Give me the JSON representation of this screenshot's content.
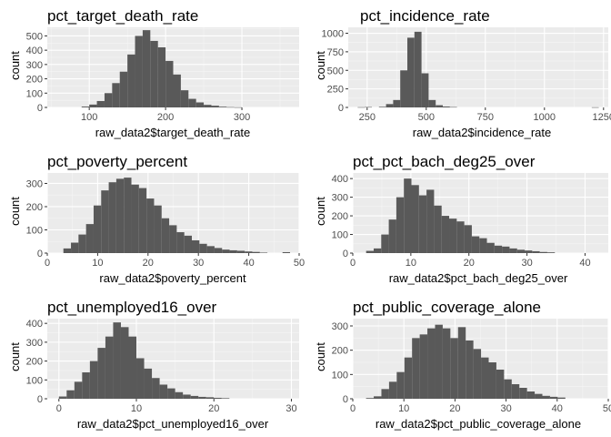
{
  "colors": {
    "panel_bg": "#ebebeb",
    "grid_major": "#ffffff",
    "grid_minor": "#f5f5f5",
    "bar_fill": "#595959",
    "tick_text": "#4d4d4d",
    "tick_mark": "#333333"
  },
  "chart_data": [
    {
      "type": "bar",
      "title": "pct_target_death_rate",
      "xlabel": "raw_data2$target_death_rate",
      "ylabel": "count",
      "xlim": [
        45,
        375
      ],
      "ylim": [
        0,
        560
      ],
      "xticks": [
        100,
        200,
        300
      ],
      "yticks": [
        0,
        100,
        200,
        300,
        400,
        500
      ],
      "grid": true,
      "bins": [
        {
          "x0": 90,
          "x1": 100,
          "count": 6
        },
        {
          "x0": 100,
          "x1": 110,
          "count": 20
        },
        {
          "x0": 110,
          "x1": 120,
          "count": 45
        },
        {
          "x0": 120,
          "x1": 130,
          "count": 100
        },
        {
          "x0": 130,
          "x1": 140,
          "count": 170
        },
        {
          "x0": 140,
          "x1": 150,
          "count": 250
        },
        {
          "x0": 150,
          "x1": 160,
          "count": 370
        },
        {
          "x0": 160,
          "x1": 170,
          "count": 500
        },
        {
          "x0": 170,
          "x1": 180,
          "count": 540
        },
        {
          "x0": 180,
          "x1": 190,
          "count": 465
        },
        {
          "x0": 190,
          "x1": 200,
          "count": 420
        },
        {
          "x0": 200,
          "x1": 210,
          "count": 325
        },
        {
          "x0": 210,
          "x1": 220,
          "count": 230
        },
        {
          "x0": 220,
          "x1": 230,
          "count": 120
        },
        {
          "x0": 230,
          "x1": 240,
          "count": 60
        },
        {
          "x0": 240,
          "x1": 250,
          "count": 35
        },
        {
          "x0": 250,
          "x1": 260,
          "count": 18
        },
        {
          "x0": 260,
          "x1": 270,
          "count": 12
        },
        {
          "x0": 270,
          "x1": 280,
          "count": 5
        },
        {
          "x0": 280,
          "x1": 290,
          "count": 2
        },
        {
          "x0": 290,
          "x1": 300,
          "count": 1
        }
      ]
    },
    {
      "type": "bar",
      "title": "pct_incidence_rate",
      "xlabel": "raw_data2$incidence_rate",
      "ylabel": "count",
      "xlim": [
        170,
        1270
      ],
      "ylim": [
        0,
        1080
      ],
      "xticks": [
        250,
        500,
        750,
        1000,
        1250
      ],
      "yticks": [
        0,
        250,
        500,
        750,
        1000
      ],
      "grid": true,
      "bins": [
        {
          "x0": 210,
          "x1": 240,
          "count": 3
        },
        {
          "x0": 240,
          "x1": 270,
          "count": 5
        },
        {
          "x0": 300,
          "x1": 330,
          "count": 8
        },
        {
          "x0": 330,
          "x1": 360,
          "count": 45
        },
        {
          "x0": 360,
          "x1": 390,
          "count": 100
        },
        {
          "x0": 390,
          "x1": 420,
          "count": 500
        },
        {
          "x0": 420,
          "x1": 450,
          "count": 940
        },
        {
          "x0": 450,
          "x1": 480,
          "count": 1020
        },
        {
          "x0": 480,
          "x1": 510,
          "count": 460
        },
        {
          "x0": 510,
          "x1": 540,
          "count": 100
        },
        {
          "x0": 540,
          "x1": 570,
          "count": 30
        },
        {
          "x0": 570,
          "x1": 600,
          "count": 12
        },
        {
          "x0": 600,
          "x1": 630,
          "count": 5
        },
        {
          "x0": 1200,
          "x1": 1230,
          "count": 2
        }
      ]
    },
    {
      "type": "bar",
      "title": "pct_poverty_percent",
      "xlabel": "raw_data2$poverty_percent",
      "ylabel": "count",
      "xlim": [
        0,
        50
      ],
      "ylim": [
        0,
        345
      ],
      "xticks": [
        0,
        10,
        20,
        30,
        40,
        50
      ],
      "yticks": [
        0,
        100,
        200,
        300
      ],
      "grid": true,
      "bins": [
        {
          "x0": 3.2,
          "x1": 4.7,
          "count": 20
        },
        {
          "x0": 4.7,
          "x1": 6.2,
          "count": 45
        },
        {
          "x0": 6.2,
          "x1": 7.7,
          "count": 80
        },
        {
          "x0": 7.7,
          "x1": 9.2,
          "count": 125
        },
        {
          "x0": 9.2,
          "x1": 10.7,
          "count": 205
        },
        {
          "x0": 10.7,
          "x1": 12.2,
          "count": 270
        },
        {
          "x0": 12.2,
          "x1": 13.7,
          "count": 305
        },
        {
          "x0": 13.7,
          "x1": 15.2,
          "count": 320
        },
        {
          "x0": 15.2,
          "x1": 16.7,
          "count": 325
        },
        {
          "x0": 16.7,
          "x1": 18.2,
          "count": 295
        },
        {
          "x0": 18.2,
          "x1": 19.7,
          "count": 280
        },
        {
          "x0": 19.7,
          "x1": 21.2,
          "count": 235
        },
        {
          "x0": 21.2,
          "x1": 22.7,
          "count": 205
        },
        {
          "x0": 22.7,
          "x1": 24.2,
          "count": 150
        },
        {
          "x0": 24.2,
          "x1": 25.7,
          "count": 120
        },
        {
          "x0": 25.7,
          "x1": 27.2,
          "count": 90
        },
        {
          "x0": 27.2,
          "x1": 28.7,
          "count": 75
        },
        {
          "x0": 28.7,
          "x1": 30.2,
          "count": 55
        },
        {
          "x0": 30.2,
          "x1": 31.7,
          "count": 40
        },
        {
          "x0": 31.7,
          "x1": 33.2,
          "count": 30
        },
        {
          "x0": 33.2,
          "x1": 34.7,
          "count": 22
        },
        {
          "x0": 34.7,
          "x1": 36.2,
          "count": 15
        },
        {
          "x0": 36.2,
          "x1": 37.7,
          "count": 12
        },
        {
          "x0": 37.7,
          "x1": 39.2,
          "count": 10
        },
        {
          "x0": 39.2,
          "x1": 40.7,
          "count": 7
        },
        {
          "x0": 40.7,
          "x1": 42.2,
          "count": 5
        },
        {
          "x0": 42.2,
          "x1": 43.7,
          "count": 2
        },
        {
          "x0": 46.7,
          "x1": 48.2,
          "count": 4
        }
      ]
    },
    {
      "type": "bar",
      "title": "pct_pct_bach_deg25_over",
      "xlabel": "raw_data2$pct_bach_deg25_over",
      "ylabel": "count",
      "xlim": [
        0,
        44
      ],
      "ylim": [
        0,
        430
      ],
      "xticks": [
        0,
        10,
        20,
        30,
        40
      ],
      "yticks": [
        0,
        100,
        200,
        300,
        400
      ],
      "grid": true,
      "bins": [
        {
          "x0": 2.3,
          "x1": 3.6,
          "count": 12
        },
        {
          "x0": 3.6,
          "x1": 4.9,
          "count": 25
        },
        {
          "x0": 4.9,
          "x1": 6.2,
          "count": 100
        },
        {
          "x0": 6.2,
          "x1": 7.5,
          "count": 180
        },
        {
          "x0": 7.5,
          "x1": 8.8,
          "count": 300
        },
        {
          "x0": 8.8,
          "x1": 10.1,
          "count": 400
        },
        {
          "x0": 10.1,
          "x1": 11.4,
          "count": 365
        },
        {
          "x0": 11.4,
          "x1": 12.7,
          "count": 310
        },
        {
          "x0": 12.7,
          "x1": 14.0,
          "count": 340
        },
        {
          "x0": 14.0,
          "x1": 15.3,
          "count": 255
        },
        {
          "x0": 15.3,
          "x1": 16.6,
          "count": 200
        },
        {
          "x0": 16.6,
          "x1": 17.9,
          "count": 185
        },
        {
          "x0": 17.9,
          "x1": 19.2,
          "count": 170
        },
        {
          "x0": 19.2,
          "x1": 20.5,
          "count": 150
        },
        {
          "x0": 20.5,
          "x1": 21.8,
          "count": 90
        },
        {
          "x0": 21.8,
          "x1": 23.1,
          "count": 80
        },
        {
          "x0": 23.1,
          "x1": 24.4,
          "count": 55
        },
        {
          "x0": 24.4,
          "x1": 25.7,
          "count": 40
        },
        {
          "x0": 25.7,
          "x1": 27.0,
          "count": 35
        },
        {
          "x0": 27.0,
          "x1": 28.3,
          "count": 25
        },
        {
          "x0": 28.3,
          "x1": 29.6,
          "count": 18
        },
        {
          "x0": 29.6,
          "x1": 30.9,
          "count": 14
        },
        {
          "x0": 30.9,
          "x1": 32.2,
          "count": 10
        },
        {
          "x0": 32.2,
          "x1": 33.5,
          "count": 6
        },
        {
          "x0": 33.5,
          "x1": 34.8,
          "count": 4
        }
      ]
    },
    {
      "type": "bar",
      "title": "pct_unemployed16_over",
      "xlabel": "raw_data2$pct_unemployed16_over",
      "ylabel": "count",
      "xlim": [
        -1.5,
        31
      ],
      "ylim": [
        0,
        425
      ],
      "xticks": [
        0,
        10,
        20,
        30
      ],
      "yticks": [
        0,
        100,
        200,
        300,
        400
      ],
      "grid": true,
      "bins": [
        {
          "x0": 0.0,
          "x1": 1.0,
          "count": 12
        },
        {
          "x0": 1.0,
          "x1": 2.0,
          "count": 45
        },
        {
          "x0": 2.0,
          "x1": 3.0,
          "count": 90
        },
        {
          "x0": 3.0,
          "x1": 4.0,
          "count": 140
        },
        {
          "x0": 4.0,
          "x1": 5.0,
          "count": 200
        },
        {
          "x0": 5.0,
          "x1": 6.0,
          "count": 270
        },
        {
          "x0": 6.0,
          "x1": 7.0,
          "count": 330
        },
        {
          "x0": 7.0,
          "x1": 8.0,
          "count": 405
        },
        {
          "x0": 8.0,
          "x1": 9.0,
          "count": 380
        },
        {
          "x0": 9.0,
          "x1": 10.0,
          "count": 330
        },
        {
          "x0": 10.0,
          "x1": 11.0,
          "count": 215
        },
        {
          "x0": 11.0,
          "x1": 12.0,
          "count": 160
        },
        {
          "x0": 12.0,
          "x1": 13.0,
          "count": 110
        },
        {
          "x0": 13.0,
          "x1": 14.0,
          "count": 75
        },
        {
          "x0": 14.0,
          "x1": 15.0,
          "count": 55
        },
        {
          "x0": 15.0,
          "x1": 16.0,
          "count": 35
        },
        {
          "x0": 16.0,
          "x1": 17.0,
          "count": 22
        },
        {
          "x0": 17.0,
          "x1": 18.0,
          "count": 15
        },
        {
          "x0": 18.0,
          "x1": 19.0,
          "count": 10
        },
        {
          "x0": 19.0,
          "x1": 20.0,
          "count": 8
        },
        {
          "x0": 20.0,
          "x1": 21.0,
          "count": 5
        },
        {
          "x0": 21.0,
          "x1": 22.0,
          "count": 3
        }
      ]
    },
    {
      "type": "bar",
      "title": "pct_public_coverage_alone",
      "xlabel": "raw_data2$pct_public_coverage_alone",
      "ylabel": "count",
      "xlim": [
        0,
        50
      ],
      "ylim": [
        0,
        330
      ],
      "xticks": [
        0,
        10,
        20,
        30,
        40,
        50
      ],
      "yticks": [
        0,
        100,
        200,
        300
      ],
      "grid": true,
      "bins": [
        {
          "x0": 2.6,
          "x1": 4.1,
          "count": 3
        },
        {
          "x0": 4.1,
          "x1": 5.6,
          "count": 10
        },
        {
          "x0": 5.6,
          "x1": 7.1,
          "count": 40
        },
        {
          "x0": 7.1,
          "x1": 8.6,
          "count": 70
        },
        {
          "x0": 8.6,
          "x1": 10.1,
          "count": 110
        },
        {
          "x0": 10.1,
          "x1": 11.6,
          "count": 170
        },
        {
          "x0": 11.6,
          "x1": 13.1,
          "count": 250
        },
        {
          "x0": 13.1,
          "x1": 14.6,
          "count": 265
        },
        {
          "x0": 14.6,
          "x1": 16.1,
          "count": 290
        },
        {
          "x0": 16.1,
          "x1": 17.6,
          "count": 305
        },
        {
          "x0": 17.6,
          "x1": 19.1,
          "count": 290
        },
        {
          "x0": 19.1,
          "x1": 20.6,
          "count": 250
        },
        {
          "x0": 20.6,
          "x1": 22.1,
          "count": 295
        },
        {
          "x0": 22.1,
          "x1": 23.6,
          "count": 240
        },
        {
          "x0": 23.6,
          "x1": 25.1,
          "count": 205
        },
        {
          "x0": 25.1,
          "x1": 26.6,
          "count": 170
        },
        {
          "x0": 26.6,
          "x1": 28.1,
          "count": 150
        },
        {
          "x0": 28.1,
          "x1": 29.6,
          "count": 120
        },
        {
          "x0": 29.6,
          "x1": 31.1,
          "count": 80
        },
        {
          "x0": 31.1,
          "x1": 32.6,
          "count": 60
        },
        {
          "x0": 32.6,
          "x1": 34.1,
          "count": 45
        },
        {
          "x0": 34.1,
          "x1": 35.6,
          "count": 30
        },
        {
          "x0": 35.6,
          "x1": 37.1,
          "count": 20
        },
        {
          "x0": 37.1,
          "x1": 38.6,
          "count": 12
        },
        {
          "x0": 38.6,
          "x1": 40.1,
          "count": 8
        },
        {
          "x0": 40.1,
          "x1": 41.6,
          "count": 5
        }
      ]
    }
  ]
}
